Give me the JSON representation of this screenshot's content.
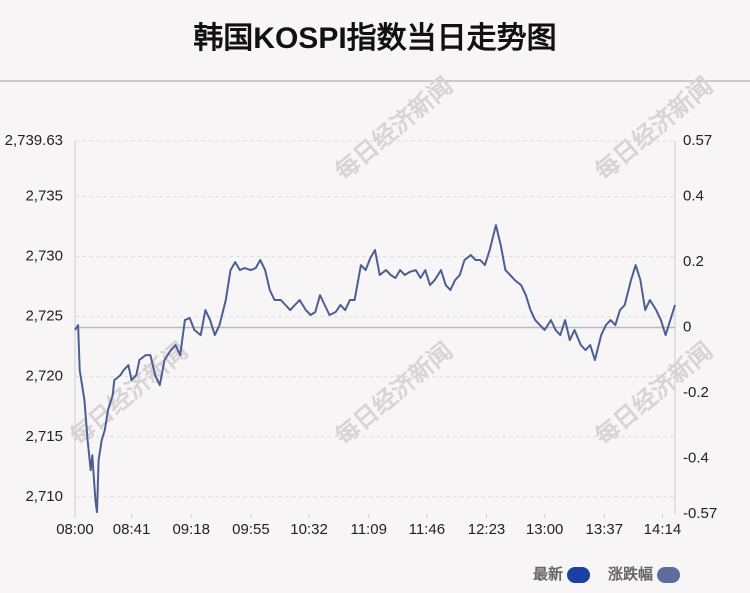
{
  "chart_data": {
    "type": "line",
    "title": "韩国KOSPI指数当日走势图",
    "watermark": "每日经济新闻",
    "x": [
      0,
      2,
      3,
      6,
      8,
      10,
      11,
      13,
      14,
      15,
      17,
      19,
      21,
      24,
      25,
      29,
      31,
      34,
      36,
      39,
      41,
      45,
      48,
      51,
      54,
      57,
      61,
      64,
      67,
      70,
      73,
      76,
      80,
      83,
      86,
      89,
      92,
      96,
      99,
      102,
      105,
      108,
      112,
      115,
      118,
      121,
      124,
      127,
      131,
      134,
      137,
      140,
      143,
      147,
      150,
      153,
      156,
      159,
      162,
      166,
      169,
      172,
      175,
      178,
      182,
      185,
      188,
      191,
      194,
      198,
      201,
      204,
      207,
      210,
      213,
      217,
      220,
      223,
      226,
      229,
      233,
      236,
      239,
      242,
      245,
      248,
      252,
      255,
      258,
      261,
      264,
      268,
      271,
      274,
      277,
      280,
      284,
      287,
      290,
      293,
      296,
      299,
      303,
      306,
      309,
      312,
      315,
      318,
      322,
      325,
      328,
      331,
      335,
      338,
      341,
      344,
      347,
      350,
      354,
      357,
      360,
      363,
      366,
      370,
      373,
      376,
      379,
      382
    ],
    "series": [
      {
        "name": "最新",
        "color": "#4b5f93",
        "values": [
          2723.89,
          2724.3,
          2720.55,
          2718.06,
          2714.72,
          2712.22,
          2713.47,
          2709.73,
          2708.73,
          2713.06,
          2714.72,
          2715.56,
          2717.22,
          2718.47,
          2719.72,
          2720.14,
          2720.55,
          2720.97,
          2719.72,
          2720.14,
          2721.39,
          2721.8,
          2721.8,
          2720.14,
          2719.3,
          2721.39,
          2722.22,
          2722.64,
          2721.8,
          2724.72,
          2724.89,
          2723.89,
          2723.47,
          2725.55,
          2724.72,
          2723.47,
          2724.3,
          2726.39,
          2728.88,
          2729.55,
          2728.88,
          2729.05,
          2728.88,
          2729.05,
          2729.72,
          2728.88,
          2727.22,
          2726.39,
          2726.39,
          2725.97,
          2725.55,
          2725.97,
          2726.39,
          2725.55,
          2725.14,
          2725.39,
          2726.8,
          2725.97,
          2725.14,
          2725.39,
          2725.97,
          2725.55,
          2726.39,
          2726.39,
          2729.3,
          2728.88,
          2729.88,
          2730.55,
          2728.47,
          2728.88,
          2728.47,
          2728.22,
          2728.88,
          2728.47,
          2728.72,
          2728.88,
          2728.22,
          2728.88,
          2727.63,
          2728.05,
          2728.88,
          2727.63,
          2727.22,
          2728.05,
          2728.47,
          2729.72,
          2730.13,
          2729.72,
          2729.72,
          2729.3,
          2730.55,
          2732.63,
          2730.97,
          2728.88,
          2728.47,
          2728.05,
          2727.63,
          2726.8,
          2725.55,
          2724.72,
          2724.3,
          2723.89,
          2724.72,
          2723.89,
          2723.47,
          2724.72,
          2723.05,
          2723.89,
          2722.64,
          2722.22,
          2722.64,
          2721.39,
          2723.47,
          2724.3,
          2724.72,
          2724.3,
          2725.55,
          2725.97,
          2728.05,
          2729.3,
          2728.05,
          2725.55,
          2726.39,
          2725.55,
          2724.72,
          2723.47,
          2724.72,
          2725.97
        ]
      }
    ],
    "legend": [
      {
        "name": "最新",
        "color": "#1c3fa6"
      },
      {
        "name": "涨跌幅",
        "color": "#5b6e9c"
      }
    ],
    "xlim": [
      0,
      382
    ],
    "xticks": [
      {
        "value": 0,
        "label": "08:00"
      },
      {
        "value": 36,
        "label": "08:41"
      },
      {
        "value": 74,
        "label": "09:18"
      },
      {
        "value": 112,
        "label": "09:55"
      },
      {
        "value": 149,
        "label": "10:32"
      },
      {
        "value": 187,
        "label": "11:09"
      },
      {
        "value": 224,
        "label": "11:46"
      },
      {
        "value": 262,
        "label": "12:23"
      },
      {
        "value": 299,
        "label": "13:00"
      },
      {
        "value": 337,
        "label": "13:37"
      },
      {
        "value": 374,
        "label": "14:14"
      }
    ],
    "ylim": [
      2708.57,
      2739.63
    ],
    "yticks": [
      2710,
      2715,
      2720,
      2725,
      2730,
      2735,
      {
        "value": 2739.63,
        "label": "2,739.63"
      }
    ],
    "ytick_labels": [
      "2,710",
      "2,715",
      "2,720",
      "2,725",
      "2,730",
      "2,735"
    ],
    "y2lim": [
      -0.57,
      0.57
    ],
    "y2ticks": [
      -0.57,
      -0.4,
      -0.2,
      0,
      0.2,
      0.4,
      0.57
    ],
    "grid": true
  }
}
